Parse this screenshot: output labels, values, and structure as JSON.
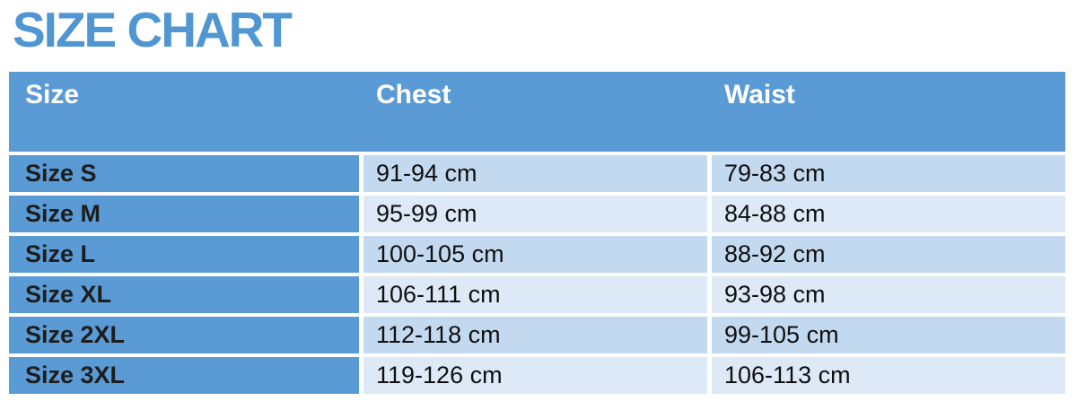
{
  "page_title": "SIZE CHART",
  "colors": {
    "title_text": "#4f96d3",
    "header_bg": "#5b9bd5",
    "size_column_bg": "#5b9bd5",
    "header_text": "#ffffff",
    "row_odd_bg": "#c3d9ef",
    "row_even_bg": "#dde9f6",
    "body_text": "#101010"
  },
  "chart_data": {
    "type": "table",
    "title": "SIZE CHART",
    "columns": [
      "Size",
      "Chest",
      "Waist"
    ],
    "rows": [
      [
        "Size S",
        "91-94 cm",
        "79-83 cm"
      ],
      [
        "Size M",
        "95-99 cm",
        "84-88 cm"
      ],
      [
        "Size L",
        "100-105 cm",
        "88-92 cm"
      ],
      [
        "Size XL",
        "106-111 cm",
        "93-98 cm"
      ],
      [
        "Size 2XL",
        "112-118 cm",
        "99-105 cm"
      ],
      [
        "Size 3XL",
        "119-126 cm",
        "106-113 cm"
      ]
    ]
  }
}
